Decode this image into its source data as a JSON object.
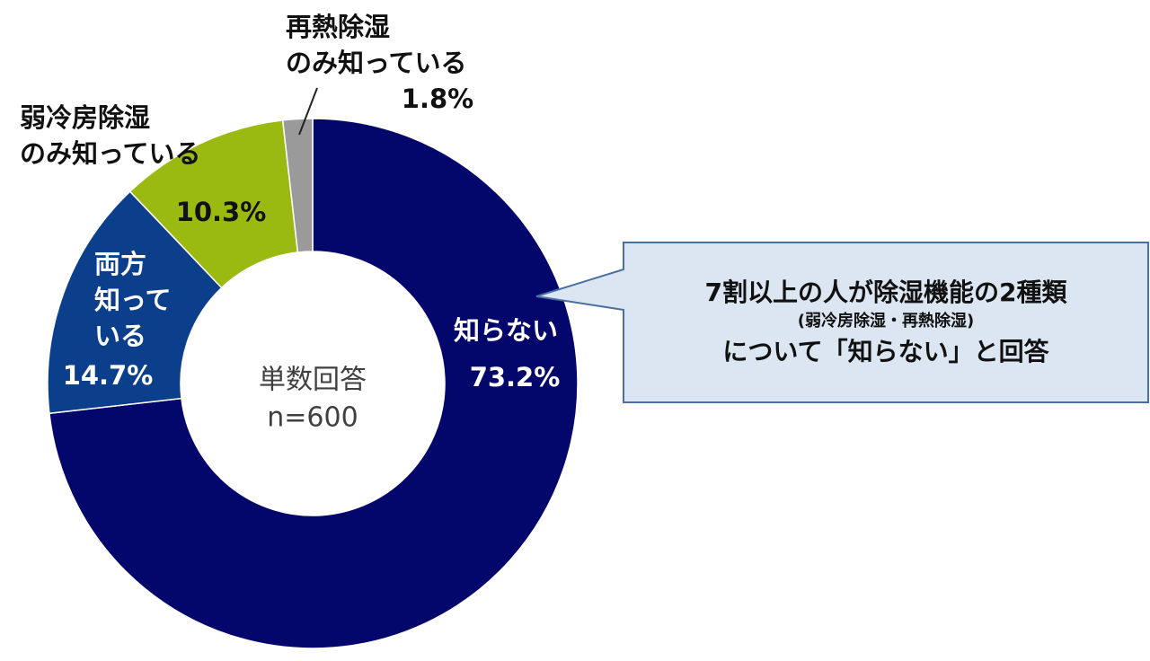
{
  "chart_data": {
    "type": "donut",
    "categories": [
      [
        "知らない"
      ],
      [
        "両方",
        "知って",
        "いる"
      ],
      [
        "弱冷房除湿",
        "のみ知っている"
      ],
      [
        "再熱除湿",
        "のみ知っている"
      ]
    ],
    "values": [
      73.2,
      14.7,
      10.3,
      1.8
    ],
    "value_labels": [
      "73.2%",
      "14.7%",
      "10.3%",
      "1.8%"
    ],
    "colors": [
      "#03066b",
      "#0b3f8c",
      "#9bba11",
      "#9a9a9a"
    ],
    "center_text": [
      "単数回答",
      "n=600"
    ],
    "callout": [
      "7割以上の人が除湿機能の2種類",
      "(弱冷房除湿・再熱除湿)",
      "について「知らない」と回答"
    ]
  }
}
